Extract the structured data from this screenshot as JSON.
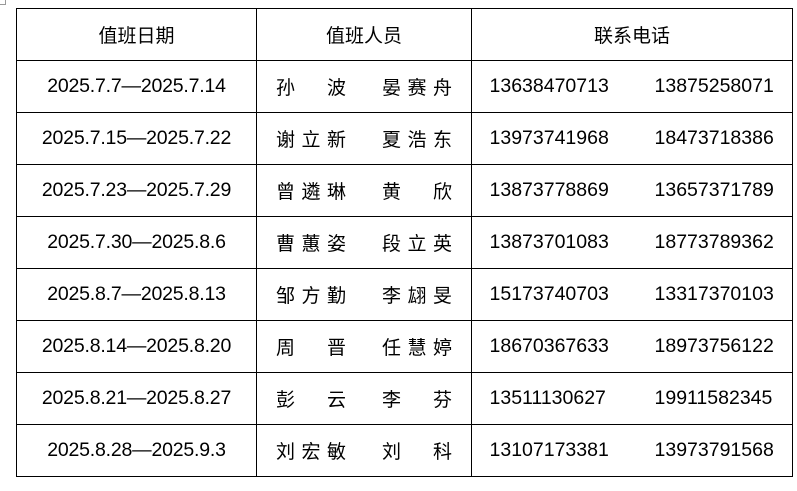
{
  "headers": {
    "date": "值班日期",
    "staff": "值班人员",
    "phone": "联系电话"
  },
  "rows": [
    {
      "date": "2025.7.7—2025.7.14",
      "names": [
        "孙波",
        "晏赛舟"
      ],
      "phones": [
        "13638470713",
        "13875258071"
      ]
    },
    {
      "date": "2025.7.15—2025.7.22",
      "names": [
        "谢立新",
        "夏浩东"
      ],
      "phones": [
        "13973741968",
        "18473718386"
      ]
    },
    {
      "date": "2025.7.23—2025.7.29",
      "names": [
        "曾遴琳",
        "黄欣"
      ],
      "phones": [
        "13873778869",
        "13657371789"
      ]
    },
    {
      "date": "2025.7.30—2025.8.6",
      "names": [
        "曹蕙姿",
        "段立英"
      ],
      "phones": [
        "13873701083",
        "18773789362"
      ]
    },
    {
      "date": "2025.8.7—2025.8.13",
      "names": [
        "邹方勤",
        "李翃旻"
      ],
      "phones": [
        "15173740703",
        "13317370103"
      ]
    },
    {
      "date": "2025.8.14—2025.8.20",
      "names": [
        "周晋",
        "任慧婷"
      ],
      "phones": [
        "18670367633",
        "18973756122"
      ]
    },
    {
      "date": "2025.8.21—2025.8.27",
      "names": [
        "彭云",
        "李芬"
      ],
      "phones": [
        "13511130627",
        "19911582345"
      ]
    },
    {
      "date": "2025.8.28—2025.9.3",
      "names": [
        "刘宏敏",
        "刘科"
      ],
      "phones": [
        "13107173381",
        "13973791568"
      ]
    }
  ]
}
